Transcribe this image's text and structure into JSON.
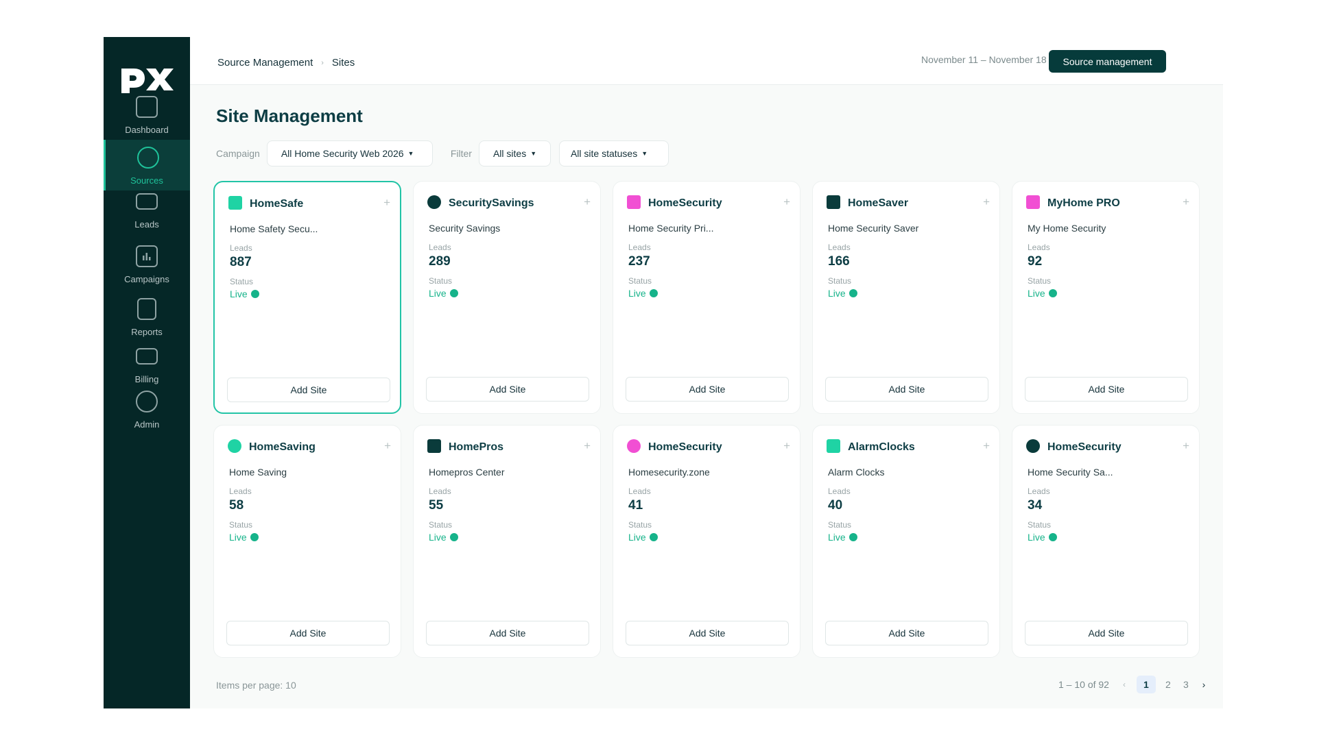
{
  "sidebar": {
    "logo": "px",
    "items": [
      {
        "label": "Dashboard",
        "icon": "dashboard-icon",
        "active": false
      },
      {
        "label": "Sources",
        "icon": "sources-icon",
        "active": true
      },
      {
        "label": "Leads",
        "icon": "leads-icon",
        "active": false
      },
      {
        "label": "Campaigns",
        "icon": "campaigns-icon",
        "active": false
      },
      {
        "label": "Reports",
        "icon": "reports-icon",
        "active": false
      },
      {
        "label": "Billing",
        "icon": "billing-icon",
        "active": false
      },
      {
        "label": "Admin",
        "icon": "admin-icon",
        "active": false
      }
    ]
  },
  "header": {
    "breadcrumb": [
      "Source Management",
      "Sites"
    ],
    "date_range": "November 11 – November 18",
    "source_button": "Source management"
  },
  "page": {
    "title": "Site Management",
    "campaign_label": "Campaign",
    "campaign_value": "All Home Security Web 2026",
    "filter_label": "Filter",
    "sites_filter": "All sites",
    "status_filter": "All site statuses"
  },
  "cards": [
    {
      "name": "HomeSafe",
      "subtitle": "Home Safety Secu...",
      "leads_label": "Leads",
      "leads": "887",
      "status_label": "Status",
      "status": "Live",
      "add_label": "Add Site",
      "color": "#1fd3a4",
      "shape": "square"
    },
    {
      "name": "SecuritySavings",
      "subtitle": "Security Savings",
      "leads_label": "Leads",
      "leads": "289",
      "status_label": "Status",
      "status": "Live",
      "add_label": "Add Site",
      "color": "#0a3b3b",
      "shape": "circle"
    },
    {
      "name": "HomeSecurity",
      "subtitle": "Home Security Pri...",
      "leads_label": "Leads",
      "leads": "237",
      "status_label": "Status",
      "status": "Live",
      "add_label": "Add Site",
      "color": "#f14fd3",
      "shape": "square"
    },
    {
      "name": "HomeSaver",
      "subtitle": "Home Security Saver",
      "leads_label": "Leads",
      "leads": "166",
      "status_label": "Status",
      "status": "Live",
      "add_label": "Add Site",
      "color": "#0a3b3b",
      "shape": "square"
    },
    {
      "name": "MyHome PRO",
      "subtitle": "My Home Security",
      "leads_label": "Leads",
      "leads": "92",
      "status_label": "Status",
      "status": "Live",
      "add_label": "Add Site",
      "color": "#f14fd3",
      "shape": "square"
    },
    {
      "name": "HomeSaving",
      "subtitle": "Home Saving",
      "leads_label": "Leads",
      "leads": "58",
      "status_label": "Status",
      "status": "Live",
      "add_label": "Add Site",
      "color": "#1fd3a4",
      "shape": "circle"
    },
    {
      "name": "HomePros",
      "subtitle": "Homepros Center",
      "leads_label": "Leads",
      "leads": "55",
      "status_label": "Status",
      "status": "Live",
      "add_label": "Add Site",
      "color": "#0a3b3b",
      "shape": "square"
    },
    {
      "name": "HomeSecurity",
      "subtitle": "Homesecurity.zone",
      "leads_label": "Leads",
      "leads": "41",
      "status_label": "Status",
      "status": "Live",
      "add_label": "Add Site",
      "color": "#f14fd3",
      "shape": "circle"
    },
    {
      "name": "AlarmClocks",
      "subtitle": "Alarm Clocks",
      "leads_label": "Leads",
      "leads": "40",
      "status_label": "Status",
      "status": "Live",
      "add_label": "Add Site",
      "color": "#1fd3a4",
      "shape": "square"
    },
    {
      "name": "HomeSecurity",
      "subtitle": "Home Security Sa...",
      "leads_label": "Leads",
      "leads": "34",
      "status_label": "Status",
      "status": "Live",
      "add_label": "Add Site",
      "color": "#0a3b3b",
      "shape": "circle"
    }
  ],
  "footer": {
    "items_per_page": "Items per page: 10",
    "range": "1 – 10 of 92",
    "prev": "‹",
    "pages": [
      "1",
      "2",
      "3"
    ],
    "current_page": "1",
    "next": "›"
  },
  "colors": {
    "sidebar_bg": "#052727",
    "accent": "#1fc29a",
    "live": "#16b38a",
    "primary_button": "#063b3b"
  }
}
